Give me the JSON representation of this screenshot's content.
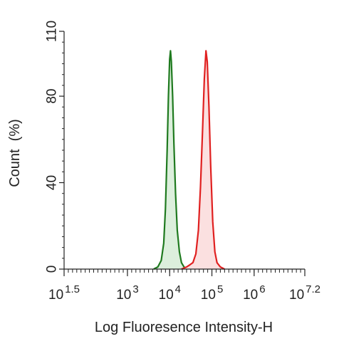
{
  "chart_data": {
    "type": "area",
    "title": "",
    "xlabel": "Log Fluoresence Intensity-H",
    "ylabel": "Count  (%)",
    "x_scale": "log10",
    "xlim_log10": [
      1.5,
      7.2
    ],
    "ylim": [
      0,
      110
    ],
    "grid": false,
    "legend": "none",
    "y_ticks": [
      {
        "value": 0,
        "label": "0"
      },
      {
        "value": 40,
        "label": "40"
      },
      {
        "value": 80,
        "label": "80"
      },
      {
        "value": 110,
        "label": "110"
      }
    ],
    "x_ticks": [
      {
        "log": 1.5,
        "base": "10",
        "exp": "1.5"
      },
      {
        "log": 3,
        "base": "10",
        "exp": "3"
      },
      {
        "log": 4,
        "base": "10",
        "exp": "4"
      },
      {
        "log": 5,
        "base": "10",
        "exp": "5"
      },
      {
        "log": 6,
        "base": "10",
        "exp": "6"
      },
      {
        "log": 7.2,
        "base": "10",
        "exp": "7.2"
      }
    ],
    "series": [
      {
        "color": "#1f7a1f",
        "fill": "#dcefdc",
        "points": [
          [
            3.62,
            0
          ],
          [
            3.72,
            1
          ],
          [
            3.8,
            4
          ],
          [
            3.86,
            12
          ],
          [
            3.9,
            28
          ],
          [
            3.94,
            55
          ],
          [
            3.97,
            80
          ],
          [
            4.0,
            97
          ],
          [
            4.02,
            101
          ],
          [
            4.04,
            96
          ],
          [
            4.07,
            80
          ],
          [
            4.1,
            58
          ],
          [
            4.14,
            35
          ],
          [
            4.18,
            18
          ],
          [
            4.23,
            8
          ],
          [
            4.28,
            3
          ],
          [
            4.34,
            1
          ],
          [
            4.42,
            0
          ]
        ]
      },
      {
        "color": "#e02020",
        "fill": "#fbe0e0",
        "points": [
          [
            4.28,
            0
          ],
          [
            4.4,
            1
          ],
          [
            4.48,
            2
          ],
          [
            4.55,
            3
          ],
          [
            4.62,
            7
          ],
          [
            4.68,
            18
          ],
          [
            4.73,
            38
          ],
          [
            4.78,
            65
          ],
          [
            4.82,
            88
          ],
          [
            4.86,
            101
          ],
          [
            4.89,
            96
          ],
          [
            4.93,
            75
          ],
          [
            4.97,
            48
          ],
          [
            5.02,
            22
          ],
          [
            5.07,
            8
          ],
          [
            5.12,
            3
          ],
          [
            5.2,
            1
          ],
          [
            5.3,
            0
          ]
        ]
      }
    ]
  }
}
